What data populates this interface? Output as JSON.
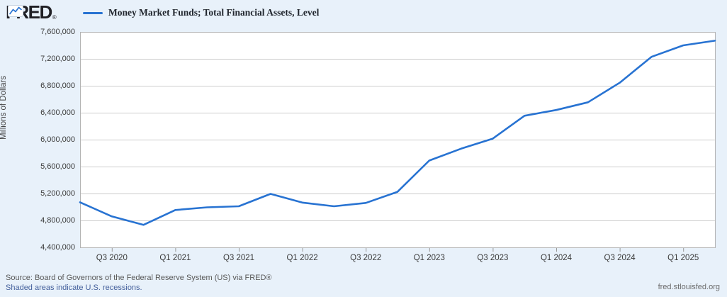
{
  "header": {
    "brand": "FRED",
    "registered_mark": "®"
  },
  "legend": {
    "series_label": "Money Market Funds; Total Financial Assets, Level"
  },
  "footer": {
    "source": "Source: Board of Governors of the Federal Reserve System (US) via FRED®",
    "recession_note": "Shaded areas indicate U.S. recessions.",
    "site_url": "fred.stlouisfed.org"
  },
  "colors": {
    "page_background": "#e8f1fa",
    "plot_background": "#ffffff",
    "plot_border": "#b3b3b3",
    "gridline": "#cccccc",
    "series_line": "#2873d2",
    "tick_mark": "#999999"
  },
  "chart_data": {
    "type": "line",
    "title": "Money Market Funds; Total Financial Assets, Level",
    "xlabel": "",
    "ylabel": "Millions of Dollars",
    "x": [
      "Q2 2020",
      "Q3 2020",
      "Q4 2020",
      "Q1 2021",
      "Q2 2021",
      "Q3 2021",
      "Q4 2021",
      "Q1 2022",
      "Q2 2022",
      "Q3 2022",
      "Q4 2022",
      "Q1 2023",
      "Q2 2023",
      "Q3 2023",
      "Q4 2023",
      "Q1 2024",
      "Q2 2024",
      "Q3 2024",
      "Q4 2024",
      "Q1 2025",
      "Q2 2025"
    ],
    "values": [
      5070000,
      4860000,
      4735000,
      4955000,
      4995000,
      5010000,
      5195000,
      5065000,
      5010000,
      5060000,
      5225000,
      5690000,
      5865000,
      6015000,
      6355000,
      6440000,
      6555000,
      6845000,
      7230000,
      7400000,
      7470000
    ],
    "x_tick_labels": [
      "Q3 2020",
      "Q1 2021",
      "Q3 2021",
      "Q1 2022",
      "Q3 2022",
      "Q1 2023",
      "Q3 2023",
      "Q1 2024",
      "Q3 2024",
      "Q1 2025"
    ],
    "y_ticks": [
      4400000,
      4800000,
      5200000,
      5600000,
      6000000,
      6400000,
      6800000,
      7200000,
      7600000
    ],
    "ylim": [
      4400000,
      7600000
    ],
    "grid": "horizontal",
    "legend_position": "top-left"
  }
}
